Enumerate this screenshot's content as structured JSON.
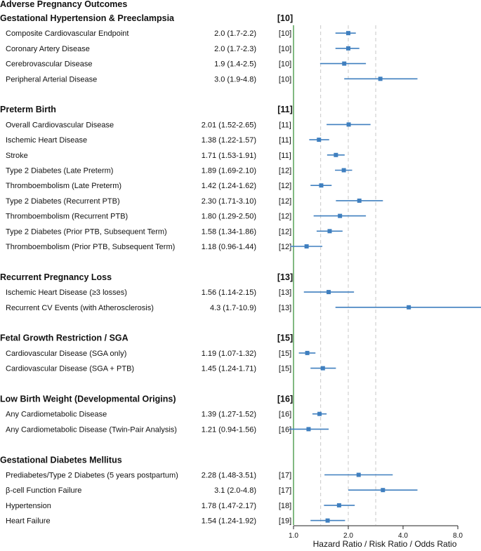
{
  "chart_data": {
    "type": "forest",
    "title": "Adverse Pregnancy Outcomes",
    "xlabel": "Hazard Ratio / Risk Ratio / Odds Ratio",
    "x_scale": "log2",
    "xlim": [
      0.87,
      10.5
    ],
    "null_line": 1.0,
    "reference_lines": [
      1.41,
      2.0,
      2.83
    ],
    "ticks": [
      {
        "value": 1.0,
        "label": "1.0"
      },
      {
        "value": 2.0,
        "label": "2.0"
      },
      {
        "value": 4.0,
        "label": "4.0"
      },
      {
        "value": 8.0,
        "label": "8.0"
      }
    ],
    "colors": {
      "marker": "#3f7fbf",
      "null_line": "#2e8b2e",
      "ref_line": "#c8c8c8"
    },
    "groups": [
      {
        "name": "Gestational Hypertension & Preeclampsia",
        "ref": "[10]",
        "rows": [
          {
            "label": "Composite Cardiovascular Endpoint",
            "ci_text": "2.0 (1.7-2.2)",
            "ref": "[10]",
            "est": 2.0,
            "lo": 1.7,
            "hi": 2.2
          },
          {
            "label": "Coronary Artery Disease",
            "ci_text": "2.0 (1.7-2.3)",
            "ref": "[10]",
            "est": 2.0,
            "lo": 1.7,
            "hi": 2.3
          },
          {
            "label": "Cerebrovascular Disease",
            "ci_text": "1.9 (1.4-2.5)",
            "ref": "[10]",
            "est": 1.9,
            "lo": 1.4,
            "hi": 2.5
          },
          {
            "label": "Peripheral Arterial Disease",
            "ci_text": "3.0 (1.9-4.8)",
            "ref": "[10]",
            "est": 3.0,
            "lo": 1.9,
            "hi": 4.8
          }
        ]
      },
      {
        "name": "Preterm Birth",
        "ref": "[11]",
        "rows": [
          {
            "label": "Overall Cardiovascular Disease",
            "ci_text": "2.01 (1.52-2.65)",
            "ref": "[11]",
            "est": 2.01,
            "lo": 1.52,
            "hi": 2.65
          },
          {
            "label": "Ischemic Heart Disease",
            "ci_text": "1.38 (1.22-1.57)",
            "ref": "[11]",
            "est": 1.38,
            "lo": 1.22,
            "hi": 1.57
          },
          {
            "label": "Stroke",
            "ci_text": "1.71 (1.53-1.91)",
            "ref": "[11]",
            "est": 1.71,
            "lo": 1.53,
            "hi": 1.91
          },
          {
            "label": "Type 2 Diabetes (Late Preterm)",
            "ci_text": "1.89 (1.69-2.10)",
            "ref": "[12]",
            "est": 1.89,
            "lo": 1.69,
            "hi": 2.1
          },
          {
            "label": "Thromboembolism (Late Preterm)",
            "ci_text": "1.42 (1.24-1.62)",
            "ref": "[12]",
            "est": 1.42,
            "lo": 1.24,
            "hi": 1.62
          },
          {
            "label": "Type 2 Diabetes (Recurrent PTB)",
            "ci_text": "2.30 (1.71-3.10)",
            "ref": "[12]",
            "est": 2.3,
            "lo": 1.71,
            "hi": 3.1
          },
          {
            "label": "Thromboembolism (Recurrent PTB)",
            "ci_text": "1.80 (1.29-2.50)",
            "ref": "[12]",
            "est": 1.8,
            "lo": 1.29,
            "hi": 2.5
          },
          {
            "label": "Type 2 Diabetes (Prior PTB, Subsequent Term)",
            "ci_text": "1.58 (1.34-1.86)",
            "ref": "[12]",
            "est": 1.58,
            "lo": 1.34,
            "hi": 1.86
          },
          {
            "label": "Thromboembolism (Prior PTB, Subsequent Term)",
            "ci_text": "1.18 (0.96-1.44)",
            "ref": "[12]",
            "est": 1.18,
            "lo": 0.96,
            "hi": 1.44
          }
        ]
      },
      {
        "name": "Recurrent Pregnancy Loss",
        "ref": "[13]",
        "rows": [
          {
            "label": "Ischemic Heart Disease (≥3 losses)",
            "ci_text": "1.56 (1.14-2.15)",
            "ref": "[13]",
            "est": 1.56,
            "lo": 1.14,
            "hi": 2.15
          },
          {
            "label": "Recurrent CV Events (with Atherosclerosis)",
            "ci_text": "4.3 (1.7-10.9)",
            "ref": "[13]",
            "est": 4.3,
            "lo": 1.7,
            "hi": 10.9
          }
        ]
      },
      {
        "name": "Fetal Growth Restriction / SGA",
        "ref": "[15]",
        "rows": [
          {
            "label": "Cardiovascular Disease (SGA only)",
            "ci_text": "1.19 (1.07-1.32)",
            "ref": "[15]",
            "est": 1.19,
            "lo": 1.07,
            "hi": 1.32
          },
          {
            "label": "Cardiovascular Disease (SGA + PTB)",
            "ci_text": "1.45 (1.24-1.71)",
            "ref": "[15]",
            "est": 1.45,
            "lo": 1.24,
            "hi": 1.71
          }
        ]
      },
      {
        "name": "Low Birth Weight (Developmental Origins)",
        "ref": "[16]",
        "rows": [
          {
            "label": "Any Cardiometabolic Disease",
            "ci_text": "1.39 (1.27-1.52)",
            "ref": "[16]",
            "est": 1.39,
            "lo": 1.27,
            "hi": 1.52
          },
          {
            "label": "Any Cardiometabolic Disease (Twin-Pair Analysis)",
            "ci_text": "1.21 (0.94-1.56)",
            "ref": "[16]",
            "est": 1.21,
            "lo": 0.94,
            "hi": 1.56
          }
        ]
      },
      {
        "name": "Gestational Diabetes Mellitus",
        "ref": "",
        "rows": [
          {
            "label": "Prediabetes/Type 2 Diabetes (5 years postpartum)",
            "ci_text": "2.28 (1.48-3.51)",
            "ref": "[17]",
            "est": 2.28,
            "lo": 1.48,
            "hi": 3.51
          },
          {
            "label": "β-cell Function Failure",
            "ci_text": "3.1 (2.0-4.8)",
            "ref": "[17]",
            "est": 3.1,
            "lo": 2.0,
            "hi": 4.8
          },
          {
            "label": "Hypertension",
            "ci_text": "1.78 (1.47-2.17)",
            "ref": "[18]",
            "est": 1.78,
            "lo": 1.47,
            "hi": 2.17
          },
          {
            "label": "Heart Failure",
            "ci_text": "1.54 (1.24-1.92)",
            "ref": "[19]",
            "est": 1.54,
            "lo": 1.24,
            "hi": 1.92
          }
        ]
      }
    ]
  }
}
